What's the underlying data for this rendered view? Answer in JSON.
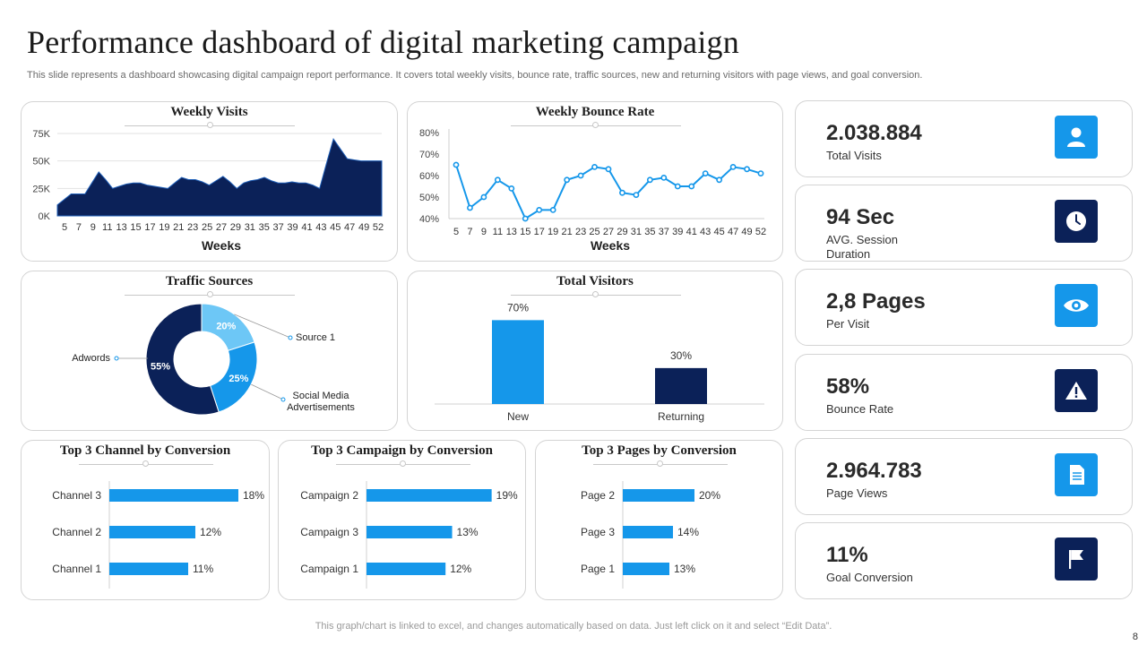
{
  "header": {
    "title": "Performance dashboard of digital marketing campaign",
    "subtitle": "This slide represents a dashboard showcasing digital campaign report performance. It covers total weekly visits, bounce rate, traffic sources, new and returning visitors with page views, and goal conversion."
  },
  "chart_data": [
    {
      "id": "weekly_visits",
      "type": "area",
      "title": "Weekly Visits",
      "xlabel": "Weeks",
      "ylabel": "",
      "x": [
        5,
        6,
        7,
        8,
        9,
        10,
        11,
        12,
        13,
        14,
        15,
        16,
        17,
        18,
        19,
        20,
        21,
        22,
        23,
        24,
        25,
        26,
        27,
        28,
        29,
        30,
        31,
        32,
        33,
        34,
        35,
        36,
        37,
        38,
        39,
        40,
        41,
        42,
        43,
        44,
        45,
        46,
        47,
        48,
        49,
        50,
        51,
        52
      ],
      "values": [
        10000,
        15000,
        20000,
        20000,
        20000,
        30000,
        40000,
        33000,
        25000,
        27000,
        29000,
        30000,
        30000,
        28000,
        27000,
        26000,
        25000,
        30000,
        35000,
        33000,
        33000,
        31000,
        28000,
        32000,
        36000,
        31000,
        25000,
        30000,
        32000,
        33000,
        35000,
        32000,
        30000,
        30000,
        31000,
        30000,
        30000,
        28000,
        25000,
        48000,
        70000,
        61000,
        52000,
        51000,
        50000,
        50000,
        50000,
        50000
      ],
      "xticks": [
        "5",
        "7",
        "9",
        "11",
        "13",
        "15",
        "17",
        "19",
        "21",
        "23",
        "25",
        "27",
        "29",
        "31",
        "35",
        "37",
        "39",
        "41",
        "43",
        "45",
        "47",
        "49",
        "52"
      ],
      "yticks": [
        "0K",
        "25K",
        "50K",
        "75K"
      ],
      "ylim": [
        0,
        75000
      ]
    },
    {
      "id": "weekly_bounce_rate",
      "type": "line",
      "title": "Weekly Bounce Rate",
      "xlabel": "Weeks",
      "ylabel": "",
      "categories": [
        "5",
        "7",
        "9",
        "11",
        "13",
        "15",
        "17",
        "19",
        "21",
        "23",
        "25",
        "27",
        "29",
        "31",
        "35",
        "37",
        "39",
        "41",
        "43",
        "45",
        "47",
        "49",
        "52"
      ],
      "values": [
        65,
        45,
        50,
        58,
        54,
        40,
        44,
        44,
        58,
        60,
        64,
        63,
        52,
        51,
        58,
        59,
        55,
        55,
        61,
        58,
        64,
        63,
        61
      ],
      "yticks": [
        "40%",
        "50%",
        "60%",
        "70%",
        "80%"
      ],
      "ylim": [
        40,
        80
      ]
    },
    {
      "id": "traffic_sources",
      "type": "pie",
      "title": "Traffic Sources",
      "labels": [
        "Source 1",
        "Social Media Advertisements",
        "Adwords"
      ],
      "values": [
        20,
        25,
        55
      ],
      "value_labels": [
        "20%",
        "25%",
        "55%"
      ],
      "colors": [
        "#6dc7f6",
        "#1597ea",
        "#0b2158"
      ]
    },
    {
      "id": "total_visitors",
      "type": "bar",
      "title": "Total Visitors",
      "categories": [
        "New",
        "Returning"
      ],
      "values": [
        70,
        30
      ],
      "value_labels": [
        "70%",
        "30%"
      ],
      "colors": [
        "#1597ea",
        "#0b2158"
      ],
      "ylim": [
        0,
        80
      ]
    },
    {
      "id": "top_channel",
      "type": "bar",
      "orientation": "horizontal",
      "title": "Top 3 Channel  by Conversion",
      "categories": [
        "Channel 3",
        "Channel 2",
        "Channel 1"
      ],
      "values": [
        18,
        12,
        11
      ],
      "value_labels": [
        "18%",
        "12%",
        "11%"
      ],
      "xlim": [
        0,
        20
      ]
    },
    {
      "id": "top_campaign",
      "type": "bar",
      "orientation": "horizontal",
      "title": "Top 3 Campaign  by Conversion",
      "categories": [
        "Campaign 2",
        "Campaign 3",
        "Campaign 1"
      ],
      "values": [
        19,
        13,
        12
      ],
      "value_labels": [
        "19%",
        "13%",
        "12%"
      ],
      "xlim": [
        0,
        20
      ]
    },
    {
      "id": "top_pages",
      "type": "bar",
      "orientation": "horizontal",
      "title": "Top 3 Pages by Conversion",
      "categories": [
        "Page 2",
        "Page 3",
        "Page 1"
      ],
      "values": [
        20,
        14,
        13
      ],
      "value_labels": [
        "20%",
        "14%",
        "13%"
      ],
      "xlim": [
        0,
        25
      ]
    }
  ],
  "kpis": [
    {
      "value": "2.038.884",
      "label": "Total Visits",
      "icon": "user-icon",
      "color": "#1597ea"
    },
    {
      "value": "94 Sec",
      "label": "AVG. Session Duration",
      "icon": "clock-icon",
      "color": "#0b2158"
    },
    {
      "value": "2,8 Pages",
      "label": "Per Visit",
      "icon": "eye-icon",
      "color": "#1597ea"
    },
    {
      "value": "58%",
      "label": "Bounce Rate",
      "icon": "warning-icon",
      "color": "#0b2158"
    },
    {
      "value": "2.964.783",
      "label": "Page Views",
      "icon": "document-icon",
      "color": "#1597ea"
    },
    {
      "value": "11%",
      "label": "Goal Conversion",
      "icon": "flag-icon",
      "color": "#0b2158"
    }
  ],
  "colors": {
    "navy": "#0b2158",
    "blue": "#1597ea",
    "light_blue": "#6dc7f6"
  },
  "footer": {
    "note": "This graph/chart is linked to excel,  and changes automatically based on data. Just left click on it and select “Edit Data”.",
    "page_number": "8"
  }
}
